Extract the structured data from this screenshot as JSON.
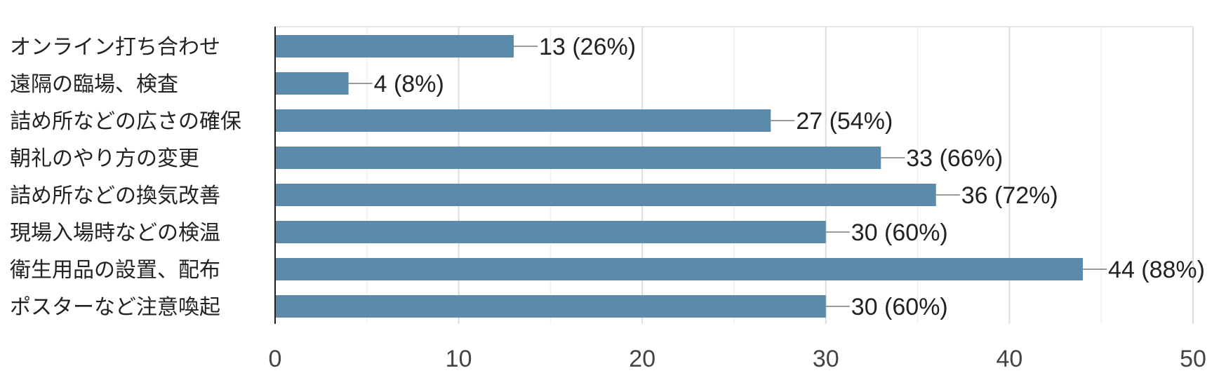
{
  "chart_data": {
    "type": "bar",
    "orientation": "horizontal",
    "categories": [
      "オンライン打ち合わせ",
      "遠隔の臨場、検査",
      "詰め所などの広さの確保",
      "朝礼のやり方の変更",
      "詰め所などの換気改善",
      "現場入場時などの検温",
      "衛生用品の設置、配布",
      "ポスターなど注意喚起"
    ],
    "values": [
      13,
      4,
      27,
      33,
      36,
      30,
      44,
      30
    ],
    "value_labels": [
      "13 (26%)",
      "4 (8%)",
      "27 (54%)",
      "33 (66%)",
      "36 (72%)",
      "30 (60%)",
      "44 (88%)",
      "30 (60%)"
    ],
    "xlim": [
      0,
      50
    ],
    "x_ticks": [
      0,
      10,
      20,
      30,
      40,
      50
    ],
    "x_tick_labels": [
      "0",
      "10",
      "20",
      "30",
      "40",
      "50"
    ],
    "grid": true,
    "bar_color": "#5b8aab",
    "title": "",
    "xlabel": "",
    "ylabel": ""
  }
}
